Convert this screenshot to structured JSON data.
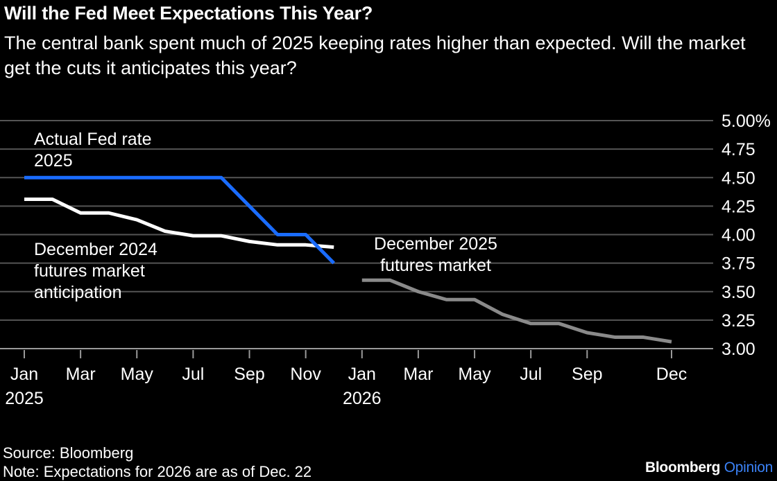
{
  "title": "Will the Fed Meet Expectations This Year?",
  "subtitle": "The central bank spent much of 2025 keeping rates higher than expected. Will the market get the cuts it anticipates this year?",
  "source": "Source: Bloomberg",
  "note": "Note: Expectations for 2026 are as of Dec. 22",
  "brand": {
    "name": "Bloomberg",
    "suffix": "Opinion"
  },
  "colors": {
    "actual": "#1a6cff",
    "futures2024": "#ffffff",
    "futures2025": "#8a8a8a",
    "grid": "#555555",
    "background": "#000000"
  },
  "chart_data": {
    "type": "line",
    "ylim": [
      3.0,
      5.0
    ],
    "y_ticks": [
      "3.00",
      "3.25",
      "3.50",
      "3.75",
      "4.00",
      "4.25",
      "4.50",
      "4.75",
      "5.00%"
    ],
    "y_tick_values": [
      3.0,
      3.25,
      3.5,
      3.75,
      4.0,
      4.25,
      4.5,
      4.75,
      5.0
    ],
    "grid": true,
    "x_ticks": [
      {
        "month": 0,
        "label": "Jan",
        "year": "2025"
      },
      {
        "month": 2,
        "label": "Mar",
        "year": ""
      },
      {
        "month": 4,
        "label": "May",
        "year": ""
      },
      {
        "month": 6,
        "label": "Jul",
        "year": ""
      },
      {
        "month": 8,
        "label": "Sep",
        "year": ""
      },
      {
        "month": 10,
        "label": "Nov",
        "year": ""
      },
      {
        "month": 12,
        "label": "Jan",
        "year": "2026"
      },
      {
        "month": 14,
        "label": "Mar",
        "year": ""
      },
      {
        "month": 16,
        "label": "May",
        "year": ""
      },
      {
        "month": 18,
        "label": "Jul",
        "year": ""
      },
      {
        "month": 20,
        "label": "Sep",
        "year": ""
      },
      {
        "month": 23,
        "label": "Dec",
        "year": ""
      }
    ],
    "series": [
      {
        "key": "actual",
        "label": [
          "Actual Fed rate",
          "2025"
        ],
        "points": [
          [
            0,
            4.5
          ],
          [
            1,
            4.5
          ],
          [
            2,
            4.5
          ],
          [
            3,
            4.5
          ],
          [
            4,
            4.5
          ],
          [
            5,
            4.5
          ],
          [
            6,
            4.5
          ],
          [
            7,
            4.5
          ],
          [
            9,
            4.0
          ],
          [
            10,
            4.0
          ],
          [
            11,
            3.75
          ]
        ]
      },
      {
        "key": "futures2024",
        "label": [
          "December 2024",
          "futures market",
          "anticipation"
        ],
        "points": [
          [
            0,
            4.31
          ],
          [
            1,
            4.31
          ],
          [
            2,
            4.19
          ],
          [
            3,
            4.19
          ],
          [
            4,
            4.13
          ],
          [
            5,
            4.03
          ],
          [
            6,
            3.99
          ],
          [
            7,
            3.99
          ],
          [
            8,
            3.94
          ],
          [
            9,
            3.91
          ],
          [
            10,
            3.91
          ],
          [
            11,
            3.89
          ]
        ]
      },
      {
        "key": "futures2025",
        "label": [
          "December 2025",
          "futures market"
        ],
        "points": [
          [
            12,
            3.6
          ],
          [
            13,
            3.6
          ],
          [
            14,
            3.5
          ],
          [
            15,
            3.43
          ],
          [
            16,
            3.43
          ],
          [
            17,
            3.3
          ],
          [
            18,
            3.22
          ],
          [
            19,
            3.22
          ],
          [
            20,
            3.14
          ],
          [
            21,
            3.1
          ],
          [
            22,
            3.1
          ],
          [
            23,
            3.06
          ]
        ]
      }
    ]
  }
}
